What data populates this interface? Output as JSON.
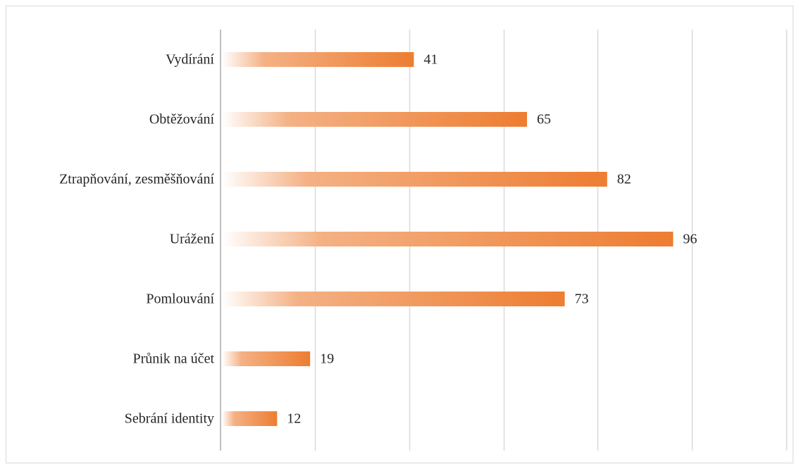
{
  "chart_data": {
    "type": "bar",
    "orientation": "horizontal",
    "title": "",
    "xlabel": "",
    "ylabel": "",
    "categories": [
      "Vydírání",
      "Obtěžování",
      "Ztrapňování, zesměšňování",
      "Urážení",
      "Pomlouvání",
      "Průnik na účet",
      "Sebrání identity"
    ],
    "values": [
      41,
      65,
      82,
      96,
      73,
      19,
      12
    ],
    "xlim": [
      0,
      120
    ],
    "x_gridlines": [
      0,
      20,
      40,
      60,
      80,
      100,
      120
    ],
    "grid": "vertical",
    "legend": "none",
    "data_labels": true,
    "bar_fill": "gradient",
    "colors": {
      "bar_end": "#ED7D31",
      "bar_start": "#FFFFFF",
      "gridline": "#D9D9D9",
      "axis": "#BFBFBF",
      "text": "#262626"
    }
  }
}
